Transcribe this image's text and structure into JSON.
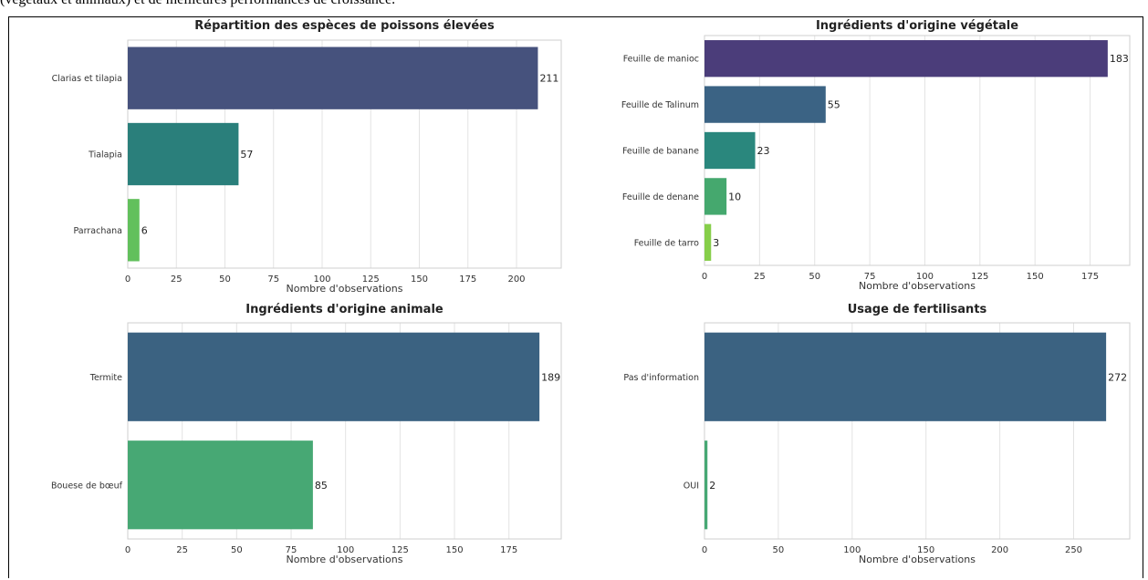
{
  "page": {
    "caption_fragment": "(végétaux et animaux) et de meilleures performances de croissance."
  },
  "chart_data": [
    {
      "type": "bar",
      "orientation": "horizontal",
      "title": "Répartition des espèces de poissons élevées",
      "categories": [
        "Clarias et tilapia",
        "Tialapia",
        "Parrachana"
      ],
      "values": [
        211,
        57,
        6
      ],
      "colors": [
        "#46527d",
        "#2a7f7b",
        "#62c05c"
      ],
      "xlabel": "Nombre d'observations",
      "ylabel": "",
      "xlim": [
        0,
        223
      ],
      "xticks": [
        0,
        25,
        50,
        75,
        100,
        125,
        150,
        175,
        200
      ],
      "grid": "vertical",
      "data_labels": true
    },
    {
      "type": "bar",
      "orientation": "horizontal",
      "title": "Ingrédients d'origine végétale",
      "categories": [
        "Feuille de manioc",
        "Feuille de Talinum",
        "Feuille de banane",
        "Feuille de denane",
        "Feuille de tarro"
      ],
      "values": [
        183,
        55,
        23,
        10,
        3
      ],
      "colors": [
        "#4b3d7a",
        "#3b6384",
        "#2a877d",
        "#45a86e",
        "#86ce4a"
      ],
      "xlabel": "Nombre d'observations",
      "ylabel": "",
      "xlim": [
        0,
        193
      ],
      "xticks": [
        0,
        25,
        50,
        75,
        100,
        125,
        150,
        175
      ],
      "grid": "vertical",
      "data_labels": true
    },
    {
      "type": "bar",
      "orientation": "horizontal",
      "title": "Ingrédients d'origine animale",
      "categories": [
        "Termite",
        "Bouese de bœuf"
      ],
      "values": [
        189,
        85
      ],
      "colors": [
        "#3b6281",
        "#47a874"
      ],
      "xlabel": "Nombre d'observations",
      "ylabel": "",
      "xlim": [
        0,
        199
      ],
      "xticks": [
        0,
        25,
        50,
        75,
        100,
        125,
        150,
        175
      ],
      "grid": "vertical",
      "data_labels": true
    },
    {
      "type": "bar",
      "orientation": "horizontal",
      "title": "Usage de fertilisants",
      "categories": [
        "Pas d'information",
        "OUI"
      ],
      "values": [
        272,
        2
      ],
      "colors": [
        "#3b6281",
        "#47a874"
      ],
      "xlabel": "Nombre d'observations",
      "ylabel": "",
      "xlim": [
        0,
        288
      ],
      "xticks": [
        0,
        50,
        100,
        150,
        200,
        250
      ],
      "grid": "vertical",
      "data_labels": true
    }
  ]
}
